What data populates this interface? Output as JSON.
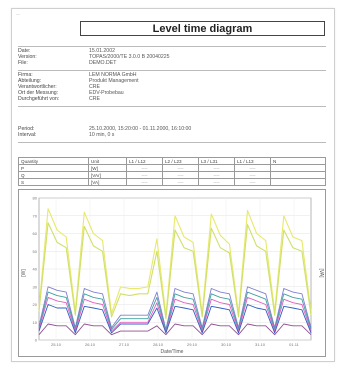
{
  "header": {
    "corner_mark": "—",
    "title": "Level time diagram"
  },
  "info_block_1": [
    {
      "key": "Date:",
      "value": "15.01.2002"
    },
    {
      "key": "Version:",
      "value": "TOPAS/2000/TE 3.0.0 B 20040225"
    },
    {
      "key": "File:",
      "value": "DEMO.DET"
    }
  ],
  "info_block_2": [
    {
      "key": "Firma:",
      "value": "LEM NORMA GmbH"
    },
    {
      "key": "Abteilung:",
      "value": "Produkt Management"
    },
    {
      "key": "Verantwortlicher:",
      "value": "CRE"
    },
    {
      "key": "Ort der Messung:",
      "value": "EDV-Probebau"
    },
    {
      "key": "Durchgeführt von:",
      "value": "CRE"
    }
  ],
  "info_block_3": [
    {
      "key": "Period:",
      "value": "25.10.2000, 15:20:00 - 01.11.2000, 16:10:00"
    },
    {
      "key": "Interval:",
      "value": "10 min, 0 s"
    }
  ],
  "quantity_table": {
    "headers": [
      "Quantity",
      "Unit",
      "L1 / L12",
      "L2 / L23",
      "L3 / L31",
      "L1 / L13",
      "N"
    ],
    "rows": [
      [
        "P",
        "[W]",
        "----",
        "----",
        "----",
        "----",
        ""
      ],
      [
        "Q",
        "[VAr]",
        "----",
        "----",
        "----",
        "----",
        ""
      ],
      [
        "S",
        "[VA]",
        "----",
        "----",
        "----",
        "----",
        ""
      ]
    ]
  },
  "chart_data": {
    "type": "line",
    "xlabel": "Date/Time",
    "ylabel": "[W]",
    "ylabel_right": "[VA]",
    "x_ticks": [
      "25.10",
      "26.10",
      "27.10",
      "28.10",
      "29.10",
      "30.10",
      "31.10",
      "01.11"
    ],
    "ylim": [
      0,
      80
    ],
    "y_ticks": [
      "0",
      "10",
      "20",
      "30",
      "40",
      "50",
      "60",
      "70",
      "80"
    ],
    "grid": true,
    "series": [
      {
        "color": "#e8e86a",
        "values": [
          18,
          74,
          62,
          58,
          16,
          72,
          60,
          56,
          15,
          30,
          29,
          29,
          30,
          57,
          14,
          70,
          58,
          55,
          15,
          71,
          59,
          54,
          15,
          73,
          60,
          56,
          16,
          70,
          58,
          56,
          16
        ]
      },
      {
        "color": "#cfe06a",
        "values": [
          16,
          66,
          55,
          52,
          14,
          64,
          53,
          50,
          13,
          26,
          25,
          26,
          26,
          50,
          12,
          62,
          52,
          50,
          13,
          63,
          52,
          49,
          13,
          65,
          53,
          50,
          14,
          62,
          52,
          50,
          14
        ]
      },
      {
        "color": "#8080d0",
        "values": [
          8,
          30,
          28,
          27,
          7,
          29,
          27,
          26,
          7,
          14,
          14,
          14,
          14,
          27,
          6,
          29,
          27,
          26,
          7,
          29,
          27,
          26,
          7,
          30,
          28,
          26,
          7,
          29,
          27,
          26,
          7
        ]
      },
      {
        "color": "#40a0a0",
        "values": [
          7,
          27,
          25,
          24,
          6,
          26,
          24,
          23,
          6,
          12,
          12,
          12,
          12,
          24,
          5,
          26,
          24,
          23,
          6,
          26,
          24,
          23,
          6,
          27,
          25,
          23,
          6,
          26,
          24,
          23,
          6
        ]
      },
      {
        "color": "#e060c0",
        "values": [
          6,
          24,
          22,
          21,
          5,
          23,
          21,
          20,
          5,
          10,
          10,
          10,
          10,
          21,
          4,
          23,
          21,
          20,
          5,
          23,
          21,
          20,
          5,
          24,
          22,
          20,
          5,
          23,
          21,
          20,
          5
        ]
      },
      {
        "color": "#3060c0",
        "values": [
          5,
          20,
          18,
          18,
          4,
          19,
          18,
          17,
          4,
          9,
          9,
          9,
          9,
          18,
          4,
          19,
          18,
          17,
          4,
          19,
          18,
          17,
          4,
          20,
          18,
          17,
          4,
          19,
          18,
          17,
          4
        ]
      },
      {
        "color": "#905090",
        "values": [
          3,
          9,
          8,
          8,
          3,
          9,
          8,
          8,
          3,
          5,
          5,
          5,
          5,
          8,
          3,
          9,
          8,
          8,
          3,
          9,
          8,
          8,
          3,
          9,
          8,
          8,
          3,
          9,
          8,
          8,
          3
        ]
      }
    ]
  }
}
